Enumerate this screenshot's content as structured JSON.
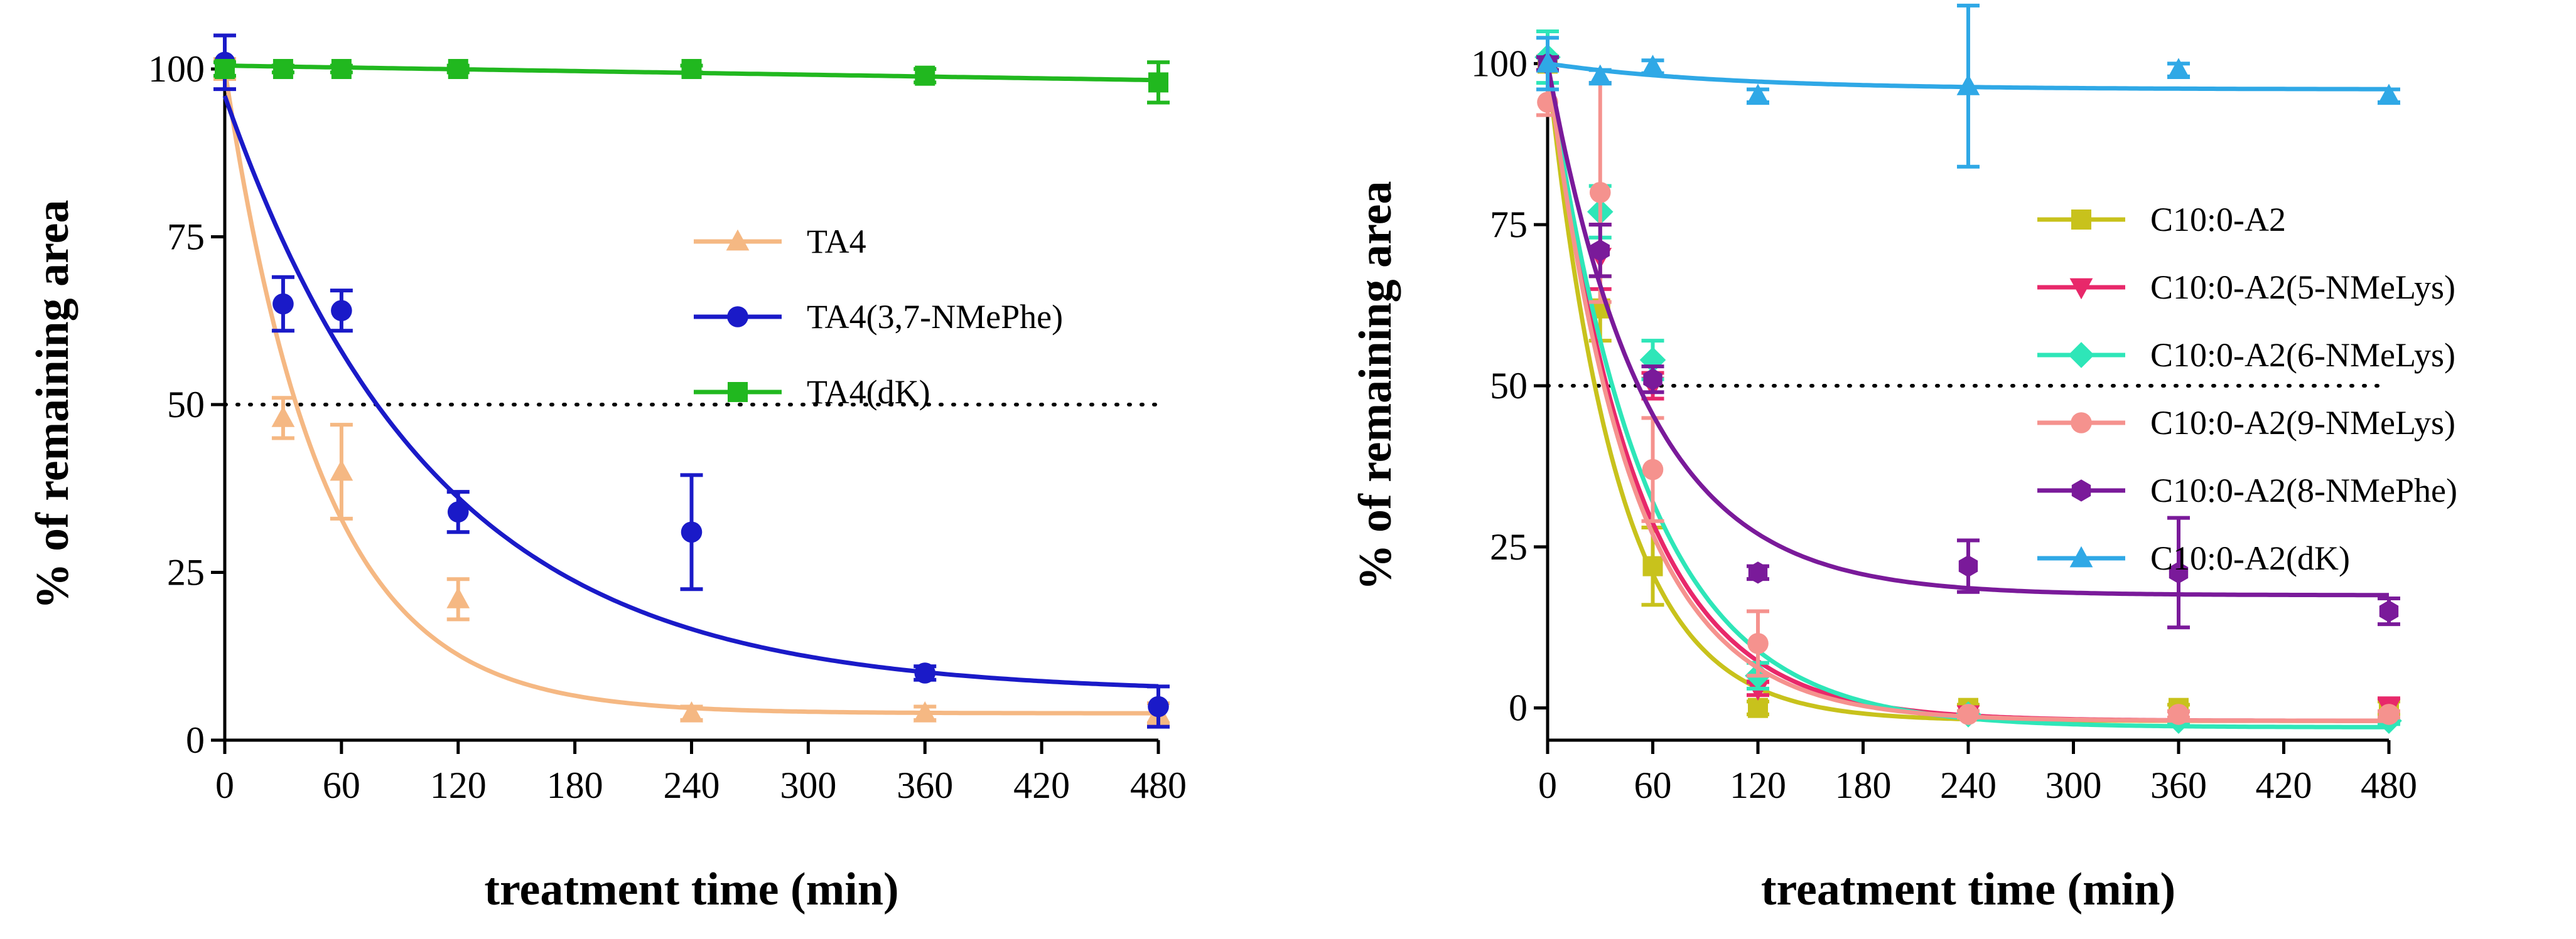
{
  "chart_data": [
    {
      "type": "scatter",
      "title": "",
      "xlabel": "treatment time (min)",
      "ylabel": "% of remaining area",
      "xlim": [
        0,
        480
      ],
      "ylim": [
        0,
        100
      ],
      "xticks": [
        0,
        60,
        120,
        180,
        240,
        300,
        360,
        420,
        480
      ],
      "yticks": [
        0,
        25,
        50,
        75,
        100
      ],
      "x_tick_labels": [
        "0",
        "60",
        "120",
        "180",
        "240",
        "300",
        "360",
        "420",
        "480"
      ],
      "y_tick_labels": [
        "0",
        "25",
        "50",
        "75",
        "100"
      ],
      "reference_line": {
        "y": 50,
        "style": "dotted",
        "x_range": [
          0,
          480
        ]
      },
      "legend_position": "center-right",
      "series": [
        {
          "name": "TA4",
          "color": "#F5B883",
          "marker": "triangle-up",
          "x": [
            0,
            30,
            60,
            120,
            240,
            360,
            480
          ],
          "y": [
            100,
            48,
            40,
            21,
            4,
            4,
            4
          ],
          "error": [
            1.5,
            3,
            7,
            3,
            1,
            1,
            1.5
          ],
          "fit": {
            "model": "one-phase decay",
            "y0": 100,
            "plateau": 4,
            "k": 0.02
          }
        },
        {
          "name": "TA4(3,7-NMePhe)",
          "color": "#1A1AC8",
          "marker": "circle",
          "x": [
            0,
            30,
            60,
            120,
            240,
            360,
            480
          ],
          "y": [
            101,
            65,
            64,
            34,
            31,
            10,
            5
          ],
          "error": [
            4,
            4,
            3,
            3,
            8.5,
            1,
            3
          ],
          "fit": {
            "model": "one-phase decay",
            "y0": 96,
            "plateau": 7,
            "k": 0.0093
          }
        },
        {
          "name": "TA4(dK)",
          "color": "#21B81F",
          "marker": "square",
          "x": [
            0,
            30,
            60,
            120,
            240,
            360,
            480
          ],
          "y": [
            100,
            100,
            100,
            100,
            100,
            99,
            98
          ],
          "error": [
            1,
            0.5,
            0.5,
            0.5,
            0.5,
            1,
            3
          ],
          "fit": {
            "model": "linear",
            "y0": 100.5,
            "slope": -0.0045
          }
        }
      ]
    },
    {
      "type": "scatter",
      "title": "",
      "xlabel": "treatment time (min)",
      "ylabel": "% of remaining area",
      "xlim": [
        0,
        480
      ],
      "ylim": [
        -5,
        105
      ],
      "xticks": [
        0,
        60,
        120,
        180,
        240,
        300,
        360,
        420,
        480
      ],
      "yticks": [
        0,
        25,
        50,
        75,
        100
      ],
      "x_tick_labels": [
        "0",
        "60",
        "120",
        "180",
        "240",
        "300",
        "360",
        "420",
        "480"
      ],
      "y_tick_labels": [
        "0",
        "25",
        "50",
        "75",
        "100"
      ],
      "reference_line": {
        "y": 50,
        "style": "dotted",
        "x_range": [
          0,
          480
        ]
      },
      "legend_position": "center-right",
      "series": [
        {
          "name": "C10:0-A2",
          "color": "#C8C21C",
          "marker": "square",
          "x": [
            0,
            30,
            60,
            120,
            240,
            360,
            480
          ],
          "y": [
            100,
            62,
            22,
            0,
            0,
            0,
            0
          ],
          "error": [
            1,
            5,
            6,
            1,
            0.5,
            0.5,
            1
          ],
          "fit": {
            "model": "one-phase decay",
            "y0": 100,
            "plateau": -2,
            "k": 0.025
          }
        },
        {
          "name": "C10:0-A2(5-NMeLys)",
          "color": "#E8286A",
          "marker": "triangle-down",
          "x": [
            0,
            30,
            60,
            120,
            240,
            360,
            480
          ],
          "y": [
            100,
            70,
            50,
            3,
            -1,
            -2,
            0
          ],
          "error": [
            1,
            5,
            2,
            1,
            0.5,
            0.5,
            1.5
          ],
          "fit": {
            "model": "one-phase decay",
            "y0": 100,
            "plateau": -2,
            "k": 0.02
          }
        },
        {
          "name": "C10:0-A2(6-NMeLys)",
          "color": "#2EE6B8",
          "marker": "diamond",
          "x": [
            0,
            30,
            60,
            120,
            240,
            360,
            480
          ],
          "y": [
            101,
            77,
            54,
            5,
            -1,
            -2,
            -2
          ],
          "error": [
            4,
            4,
            3,
            2,
            0.5,
            0.5,
            0.5
          ],
          "fit": {
            "model": "one-phase decay",
            "y0": 100,
            "plateau": -3,
            "k": 0.018
          }
        },
        {
          "name": "C10:0-A2(9-NMeLys)",
          "color": "#F5928E",
          "marker": "circle",
          "x": [
            0,
            30,
            60,
            120,
            240,
            360,
            480
          ],
          "y": [
            94,
            80,
            37,
            10,
            -1,
            -1,
            -1
          ],
          "error": [
            2,
            17,
            8,
            5,
            0.5,
            0.5,
            0.5
          ],
          "fit": {
            "model": "one-phase decay",
            "y0": 100,
            "plateau": -2,
            "k": 0.021
          }
        },
        {
          "name": "C10:0-A2(8-NMePhe)",
          "color": "#7A1A9A",
          "marker": "hexagon",
          "x": [
            0,
            30,
            60,
            120,
            240,
            360,
            480
          ],
          "y": [
            100,
            71,
            51,
            21,
            22,
            21,
            15
          ],
          "error": [
            1,
            4,
            2,
            1,
            4,
            8.5,
            2
          ],
          "fit": {
            "model": "one-phase decay",
            "y0": 100,
            "plateau": 17.5,
            "k": 0.018
          }
        },
        {
          "name": "C10:0-A2(dK)",
          "color": "#2FA8E6",
          "marker": "triangle-up",
          "x": [
            0,
            30,
            60,
            120,
            240,
            360,
            480
          ],
          "y": [
            100,
            98,
            99.5,
            95,
            96.5,
            99,
            95
          ],
          "error": [
            4,
            1,
            1,
            1,
            12.5,
            1,
            1
          ],
          "fit": {
            "model": "one-phase decay",
            "y0": 100,
            "plateau": 96,
            "k": 0.01
          }
        }
      ]
    }
  ]
}
